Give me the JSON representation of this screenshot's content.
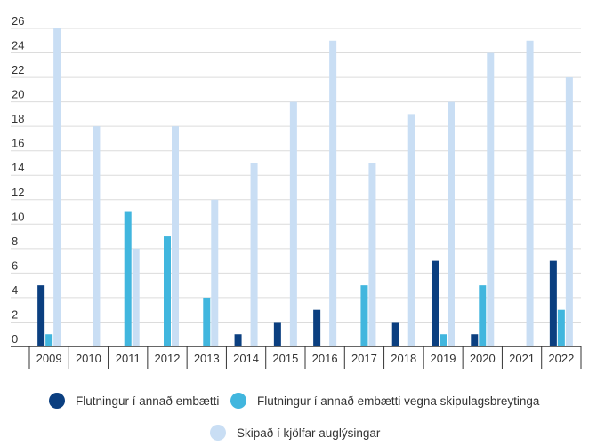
{
  "chart_data": {
    "type": "bar",
    "categories": [
      "2009",
      "2010",
      "2011",
      "2012",
      "2013",
      "2014",
      "2015",
      "2016",
      "2017",
      "2018",
      "2019",
      "2020",
      "2021",
      "2022"
    ],
    "series": [
      {
        "name": "Flutningur í annað embætti",
        "color": "#0b3f80",
        "values": [
          5,
          0,
          0,
          0,
          0,
          1,
          2,
          3,
          0,
          2,
          7,
          1,
          0,
          7
        ]
      },
      {
        "name": "Flutningur í annað embætti vegna skipulagsbreytinga",
        "color": "#41b6de",
        "values": [
          1,
          0,
          11,
          9,
          4,
          0,
          0,
          0,
          5,
          0,
          1,
          5,
          0,
          3
        ]
      },
      {
        "name": "Skipað í kjölfar auglýsingar",
        "color": "#c9def4",
        "values": [
          26,
          18,
          8,
          18,
          12,
          15,
          20,
          25,
          15,
          19,
          20,
          24,
          25,
          22
        ]
      }
    ],
    "yticks": [
      "0",
      "2",
      "4",
      "6",
      "8",
      "10",
      "12",
      "14",
      "16",
      "18",
      "20",
      "22",
      "24",
      "26"
    ],
    "ylim": [
      0,
      26
    ],
    "grid": true,
    "legend_position": "bottom"
  }
}
